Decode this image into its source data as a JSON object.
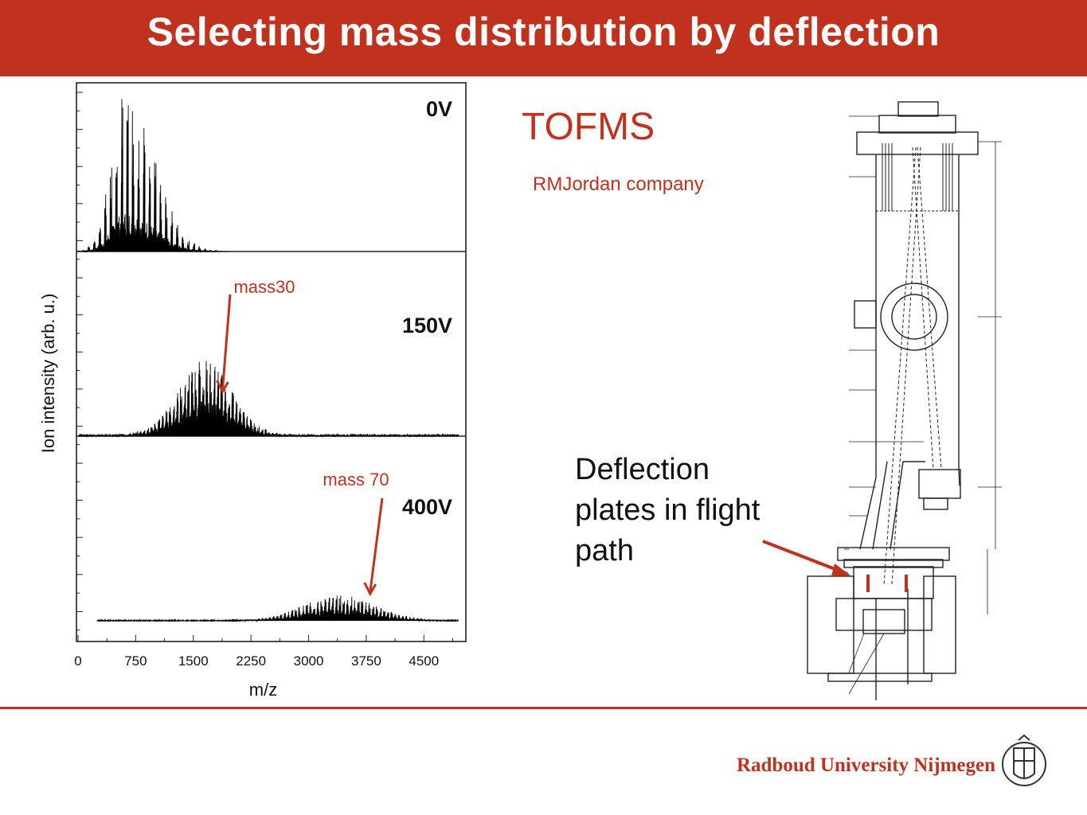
{
  "slide": {
    "title": "Selecting mass distribution by deflection",
    "instrument": "TOFMS",
    "company": "RMJordan company",
    "deflection_note": [
      "Deflection",
      "plates in flight",
      "path"
    ],
    "footer_institution": "Radboud University Nijmegen",
    "accent_color": "#c0311e"
  },
  "chart_data": {
    "type": "line",
    "xlabel": "m/z",
    "ylabel": "Ion intensity (arb. u.)",
    "xlim": [
      0,
      5000
    ],
    "xticks": [
      0,
      750,
      1500,
      2250,
      3000,
      3750,
      4500
    ],
    "ytick_labels": "none",
    "grid": false,
    "panels": [
      {
        "label": "0V",
        "envelope": {
          "x_start": 0,
          "x_end": 1950,
          "peak_x": 620,
          "peak_relative_height": 1.0
        }
      },
      {
        "label": "150V",
        "envelope": {
          "x_start": 0,
          "x_end": 4950,
          "peak_x": 1650,
          "peak_relative_height": 0.45
        },
        "annotation": {
          "text": "mass30",
          "x": 1880
        }
      },
      {
        "label": "400V",
        "envelope": {
          "x_start": 250,
          "x_end": 4950,
          "peak_x": 3400,
          "peak_relative_height": 0.15
        },
        "annotation": {
          "text": "mass 70",
          "x": 3800
        }
      }
    ]
  }
}
